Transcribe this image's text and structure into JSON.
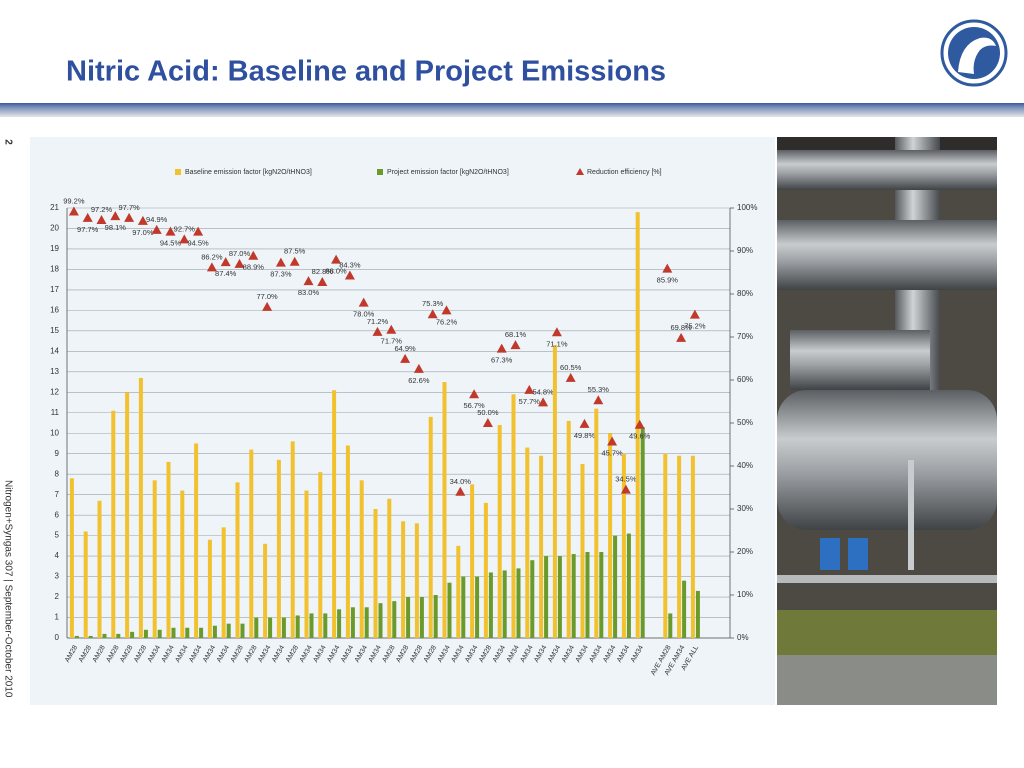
{
  "title": "Nitric Acid: Baseline and Project Emissions",
  "page_number": "2",
  "footer": "Nitrogen+Syngas 307 | September-October 2010",
  "chart_data": {
    "type": "bar",
    "categories": [
      "AM28",
      "AM28",
      "AM28",
      "AM28",
      "AM28",
      "AM28",
      "AM34",
      "AM34",
      "AM34",
      "AM34",
      "AM34",
      "AM34",
      "AM28",
      "AM28",
      "AM34",
      "AM34",
      "AM28",
      "AM34",
      "AM34",
      "AM34",
      "AM34",
      "AM34",
      "AM34",
      "AM28",
      "AM28",
      "AM28",
      "AM28",
      "AM34",
      "AM34",
      "AM34",
      "AM28",
      "AM34",
      "AM34",
      "AM34",
      "AM34",
      "AM34",
      "AM34",
      "AM34",
      "AM34",
      "AM34",
      "AM34",
      "AM34",
      null,
      "AVE AM28",
      "AVE AM34",
      "AVE ALL"
    ],
    "series": [
      {
        "name": "Baseline emission factor [kgN2O/tHNO3]",
        "color": "#f2c12e",
        "values": [
          7.8,
          5.2,
          6.7,
          11.1,
          12.0,
          12.7,
          7.7,
          8.6,
          7.2,
          9.5,
          4.8,
          5.4,
          7.6,
          9.2,
          4.6,
          8.7,
          9.6,
          7.2,
          8.1,
          12.1,
          9.4,
          7.7,
          6.3,
          6.8,
          5.7,
          5.6,
          10.8,
          12.5,
          4.5,
          7.5,
          6.6,
          10.4,
          11.9,
          9.3,
          8.9,
          14.3,
          10.6,
          8.5,
          11.2,
          10.0,
          9.0,
          20.8,
          null,
          9.0,
          8.9,
          8.9
        ]
      },
      {
        "name": "Project emission factor [kgN2O/tHNO3]",
        "color": "#6a9a2a",
        "values": [
          0.1,
          0.1,
          0.2,
          0.2,
          0.3,
          0.4,
          0.4,
          0.5,
          0.5,
          0.5,
          0.6,
          0.7,
          0.7,
          1.0,
          1.0,
          1.0,
          1.1,
          1.2,
          1.2,
          1.4,
          1.5,
          1.5,
          1.7,
          1.8,
          2.0,
          2.0,
          2.1,
          2.7,
          3.0,
          3.0,
          3.2,
          3.3,
          3.4,
          3.8,
          4.0,
          4.0,
          4.1,
          4.2,
          4.2,
          5.0,
          5.1,
          10.3,
          null,
          1.2,
          2.8,
          2.3
        ]
      },
      {
        "name": "Reduction efficiency [%]",
        "color": "#c0392b",
        "axis": "y2",
        "marker": "triangle",
        "values": [
          99.2,
          97.7,
          97.2,
          98.1,
          97.7,
          97.0,
          94.9,
          94.5,
          92.7,
          94.5,
          86.2,
          87.4,
          87.0,
          88.9,
          77.0,
          87.3,
          87.5,
          83.0,
          82.8,
          88.0,
          84.3,
          78.0,
          71.2,
          71.7,
          64.9,
          62.6,
          75.3,
          76.2,
          34.0,
          56.7,
          50.0,
          67.3,
          68.1,
          57.7,
          54.8,
          71.1,
          60.5,
          49.8,
          55.3,
          45.7,
          34.5,
          49.6,
          null,
          85.9,
          69.8,
          75.2
        ],
        "value_labels": [
          "99.2%",
          "97.7%",
          "97.2%",
          "98.1%",
          "97.7%",
          "97.0%",
          "94.9%",
          "94.5%",
          "92.7%",
          "94.5%",
          "86.2%",
          "87.4%",
          "87.0%",
          "88.9%",
          "77.0%",
          "87.3%",
          "87.5%",
          "83.0%",
          "82.8%",
          "88.0%",
          "84.3%",
          "78.0%",
          "71.2%",
          "71.7%",
          "64.9%",
          "62.6%",
          "75.3%",
          "76.2%",
          "34.0%",
          "56.7%",
          "50.0%",
          "67.3%",
          "68.1%",
          "57.7%",
          "54.8%",
          "71.1%",
          "60.5%",
          "49.8%",
          "55.3%",
          "45.7%",
          "34.5%",
          "49.6%",
          null,
          "85.9%",
          "69.8%",
          "75.2%"
        ]
      }
    ],
    "ylim": [
      0,
      21
    ],
    "yticks": [
      0,
      1,
      2,
      3,
      4,
      5,
      6,
      7,
      8,
      9,
      10,
      11,
      12,
      13,
      14,
      15,
      16,
      17,
      18,
      19,
      20,
      21
    ],
    "y2lim": [
      0,
      100
    ],
    "y2ticks": [
      {
        "value": 0,
        "label": "0%"
      },
      {
        "value": 10,
        "label": "10%"
      },
      {
        "value": 20,
        "label": "20%"
      },
      {
        "value": 30,
        "label": "30%"
      },
      {
        "value": 40,
        "label": "40%"
      },
      {
        "value": 50,
        "label": "50%"
      },
      {
        "value": 60,
        "label": "60%"
      },
      {
        "value": 70,
        "label": "70%"
      },
      {
        "value": 80,
        "label": "80%"
      },
      {
        "value": 90,
        "label": "90%"
      },
      {
        "value": 100,
        "label": "100%"
      }
    ],
    "grid": true,
    "legend": "top"
  }
}
